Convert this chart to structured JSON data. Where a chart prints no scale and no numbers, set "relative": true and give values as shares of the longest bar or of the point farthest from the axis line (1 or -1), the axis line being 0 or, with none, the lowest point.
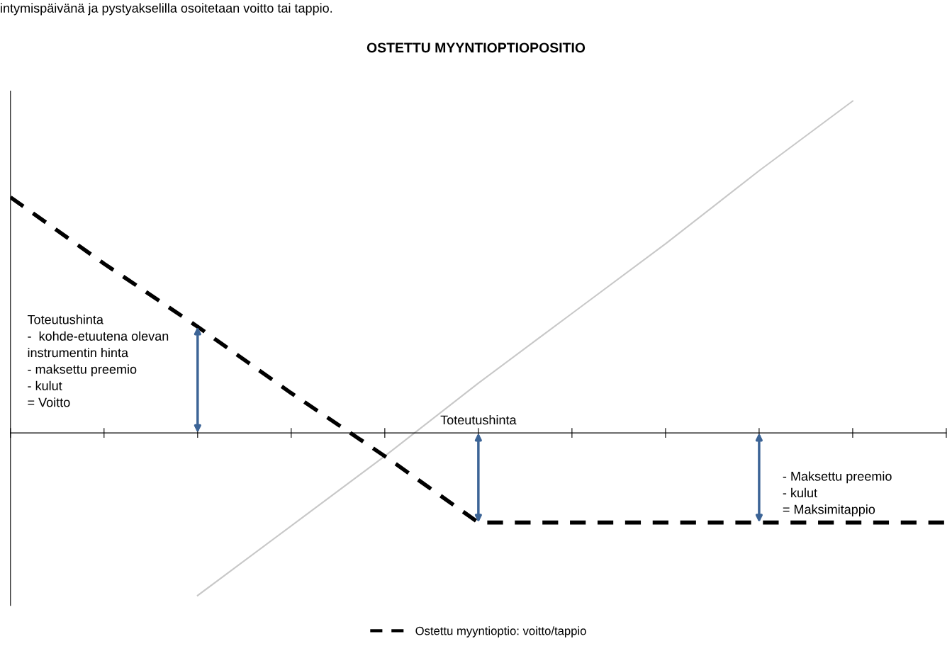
{
  "chart_data": {
    "type": "line",
    "title": "OSTETTU MYYNTIOPTIOPOSITIO",
    "relative": true,
    "categories": [
      null,
      null,
      null,
      null,
      null,
      null,
      null,
      null,
      null,
      null,
      null
    ],
    "series": [
      {
        "name": "Ostettu myyntioptio: voitto/tappio",
        "color": "#000000",
        "line_style": "dashed",
        "values": [
          0.71,
          0.51,
          0.32,
          0.12,
          -0.07,
          -0.27,
          -0.27,
          -0.27,
          -0.27,
          -0.27,
          -0.27
        ]
      },
      {
        "color": "#c8c8c8",
        "line_style": "solid",
        "values": [
          null,
          null,
          -0.49,
          -0.28,
          -0.07,
          0.15,
          0.36,
          0.57,
          0.79,
          1.0,
          null
        ]
      }
    ],
    "annotations": [
      "intymispäivänä ja pystyakselilla osoitetaan voitto tai tappio.",
      "Toteutushinta\n-  kohde-etuutena olevan\ninstrumentin hinta\n- maksettu preemio\n- kulut\n= Voitto",
      "Toteutushinta",
      "- Maksettu preemio\n- kulut\n= Maksimitappio"
    ],
    "legend": "bottom",
    "grid": false,
    "tick_labels": false,
    "marker": "none"
  }
}
